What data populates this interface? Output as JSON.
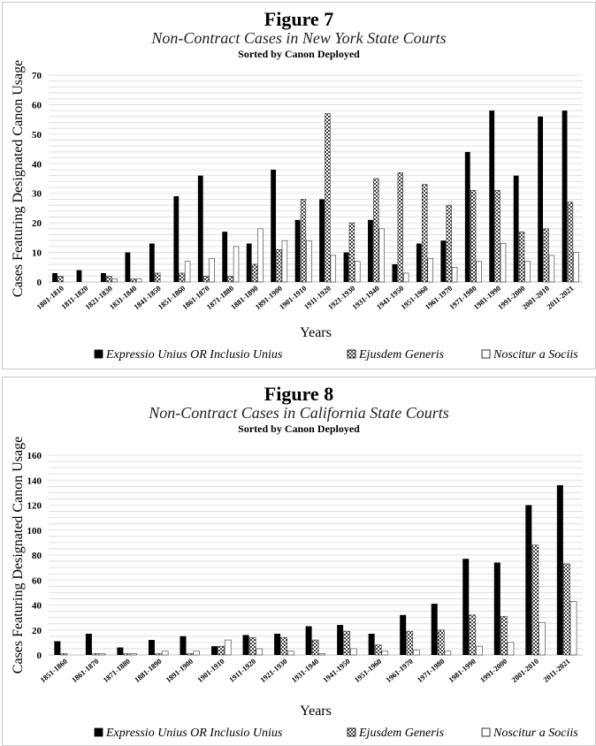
{
  "chart_data": [
    {
      "type": "bar",
      "title": "Figure 7",
      "subtitle": "Non-Contract Cases in New York State Courts",
      "note": "Sorted by Canon Deployed",
      "xlabel": "Years",
      "ylabel": "Cases Featuring Designated Canon Usage",
      "ylim": [
        0,
        70
      ],
      "yticks": [
        0,
        10,
        20,
        30,
        40,
        50,
        60,
        70
      ],
      "grid": true,
      "legend_position": "bottom",
      "categories": [
        "1801-1810",
        "1811-1820",
        "1821-1830",
        "1831-1840",
        "1841-1850",
        "1851-1860",
        "1861-1870",
        "1871-1880",
        "1881-1890",
        "1891-1900",
        "1901-1910",
        "1911-1920",
        "1921-1930",
        "1931-1940",
        "1941-1950",
        "1951-1960",
        "1961-1970",
        "1971-1980",
        "1981-1990",
        "1991-2000",
        "2001-2010",
        "2011-2021"
      ],
      "series": [
        {
          "name": "Expressio Unius OR Inclusio Unius",
          "pattern": "solid",
          "values": [
            3,
            4,
            3,
            10,
            13,
            29,
            36,
            17,
            13,
            38,
            21,
            28,
            10,
            21,
            6,
            13,
            14,
            44,
            58,
            36,
            56,
            58
          ]
        },
        {
          "name": "Ejusdem Generis",
          "pattern": "checker",
          "values": [
            2,
            0,
            2,
            1,
            3,
            3,
            2,
            2,
            6,
            11,
            28,
            57,
            20,
            35,
            37,
            33,
            26,
            31,
            31,
            17,
            18,
            27
          ]
        },
        {
          "name": "Noscitur a Sociis",
          "pattern": "empty",
          "values": [
            0,
            0,
            1,
            1,
            0,
            7,
            8,
            12,
            18,
            14,
            14,
            9,
            7,
            18,
            3,
            8,
            5,
            7,
            13,
            7,
            9,
            10
          ]
        }
      ]
    },
    {
      "type": "bar",
      "title": "Figure 8",
      "subtitle": "Non-Contract Cases in California State Courts",
      "note": "Sorted by Canon Deployed",
      "xlabel": "Years",
      "ylabel": "Cases Featuring Designated Canon Usage",
      "ylim": [
        0,
        160
      ],
      "yticks": [
        0,
        20,
        40,
        60,
        80,
        100,
        120,
        140,
        160
      ],
      "grid": true,
      "legend_position": "bottom",
      "categories": [
        "1851-1860",
        "1861-1870",
        "1871-1880",
        "1881-1890",
        "1891-1900",
        "1901-1910",
        "1911-1920",
        "1921-1930",
        "1931-1940",
        "1941-1950",
        "1951-1960",
        "1961-1970",
        "1971-1980",
        "1981-1990",
        "1991-2000",
        "2001-2010",
        "2011-2021"
      ],
      "series": [
        {
          "name": "Expressio Unius OR Inclusio Unius",
          "pattern": "solid",
          "values": [
            11,
            17,
            6,
            12,
            15,
            7,
            16,
            17,
            23,
            24,
            17,
            32,
            41,
            77,
            74,
            120,
            136
          ]
        },
        {
          "name": "Ejusdem Generis",
          "pattern": "checker",
          "values": [
            1,
            1,
            1,
            1,
            1,
            7,
            14,
            14,
            12,
            19,
            8,
            19,
            20,
            32,
            31,
            88,
            73
          ]
        },
        {
          "name": "Noscitur a Sociis",
          "pattern": "empty",
          "values": [
            0,
            1,
            1,
            3,
            3,
            12,
            5,
            3,
            1,
            5,
            3,
            4,
            3,
            7,
            10,
            26,
            43
          ]
        }
      ]
    }
  ]
}
